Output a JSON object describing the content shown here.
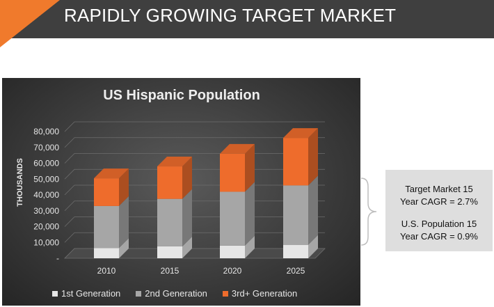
{
  "header": {
    "title": "RAPIDLY GROWING TARGET MARKET",
    "background": "#3f3f3f",
    "accent_color": "#f07a2c"
  },
  "chart_data": {
    "type": "bar",
    "stacked": true,
    "three_d": true,
    "title": "US Hispanic Population",
    "xlabel": "",
    "ylabel": "THOUSANDS",
    "categories": [
      "2010",
      "2015",
      "2020",
      "2025"
    ],
    "ylim": [
      0,
      80000
    ],
    "yticks": [
      0,
      10000,
      20000,
      30000,
      40000,
      50000,
      60000,
      70000,
      80000
    ],
    "ytick_labels": [
      "-",
      "10,000",
      "20,000",
      "30,000",
      "40,000",
      "50,000",
      "60,000",
      "70,000",
      "80,000"
    ],
    "series": [
      {
        "name": "1st Generation",
        "color": "#e6e6e6",
        "values": [
          6500,
          7500,
          8000,
          8500
        ]
      },
      {
        "name": "2nd Generation",
        "color": "#a6a6a6",
        "values": [
          26500,
          30000,
          34000,
          37500
        ]
      },
      {
        "name": "3rd+ Generation",
        "color": "#ee6c2c",
        "values": [
          17500,
          20500,
          24000,
          30000
        ]
      }
    ],
    "legend": "bottom",
    "grid": true
  },
  "info_box": {
    "lines": [
      "Target Market 15",
      "Year CAGR = 2.7%",
      "U.S. Population 15",
      "Year CAGR = 0.9%"
    ]
  }
}
